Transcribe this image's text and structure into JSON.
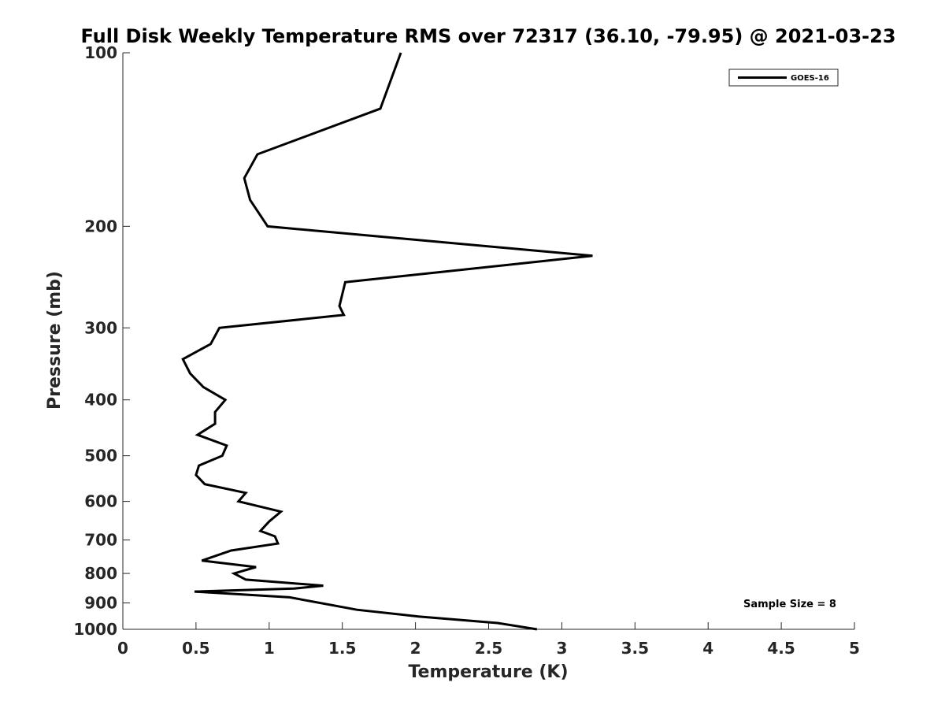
{
  "chart_data": {
    "type": "line",
    "title": "Full Disk Weekly Temperature RMS over 72317 (36.10, -79.95) @ 2021-03-23",
    "xlabel": "Temperature (K)",
    "ylabel": "Pressure (mb)",
    "xlim": [
      0,
      5
    ],
    "ylim": [
      1000,
      100
    ],
    "y_scale": "log",
    "y_reversed": true,
    "x_ticks": [
      0,
      0.5,
      1,
      1.5,
      2,
      2.5,
      3,
      3.5,
      4,
      4.5,
      5
    ],
    "x_tick_labels": [
      "0",
      "0.5",
      "1",
      "1.5",
      "2",
      "2.5",
      "3",
      "3.5",
      "4",
      "4.5",
      "5"
    ],
    "y_ticks": [
      100,
      200,
      300,
      400,
      500,
      600,
      700,
      800,
      900,
      1000
    ],
    "y_tick_labels": [
      "100",
      "200",
      "300",
      "400",
      "500",
      "600",
      "700",
      "800",
      "900",
      "1000"
    ],
    "grid": false,
    "legend_position": "top-right",
    "series": [
      {
        "name": "GOES-16",
        "color": "#000000",
        "x": [
          1.9,
          1.76,
          0.92,
          0.83,
          0.87,
          0.99,
          3.21,
          1.52,
          1.48,
          1.51,
          0.66,
          0.6,
          0.41,
          0.46,
          0.55,
          0.7,
          0.63,
          0.63,
          0.51,
          0.71,
          0.68,
          0.52,
          0.5,
          0.56,
          0.84,
          0.79,
          1.08,
          1.0,
          0.94,
          1.04,
          1.06,
          0.74,
          0.54,
          0.91,
          0.76,
          0.84,
          1.37,
          1.17,
          0.49,
          1.14,
          1.6,
          2.02,
          2.56,
          2.83
        ],
        "y": [
          100,
          125,
          150,
          165,
          180,
          200,
          225,
          250,
          275,
          285,
          300,
          320,
          340,
          360,
          380,
          400,
          420,
          440,
          460,
          480,
          500,
          520,
          540,
          560,
          580,
          600,
          625,
          650,
          675,
          690,
          710,
          730,
          760,
          780,
          800,
          820,
          840,
          850,
          860,
          880,
          925,
          950,
          975,
          1000
        ]
      }
    ],
    "annotation": "Sample Size = 8"
  }
}
